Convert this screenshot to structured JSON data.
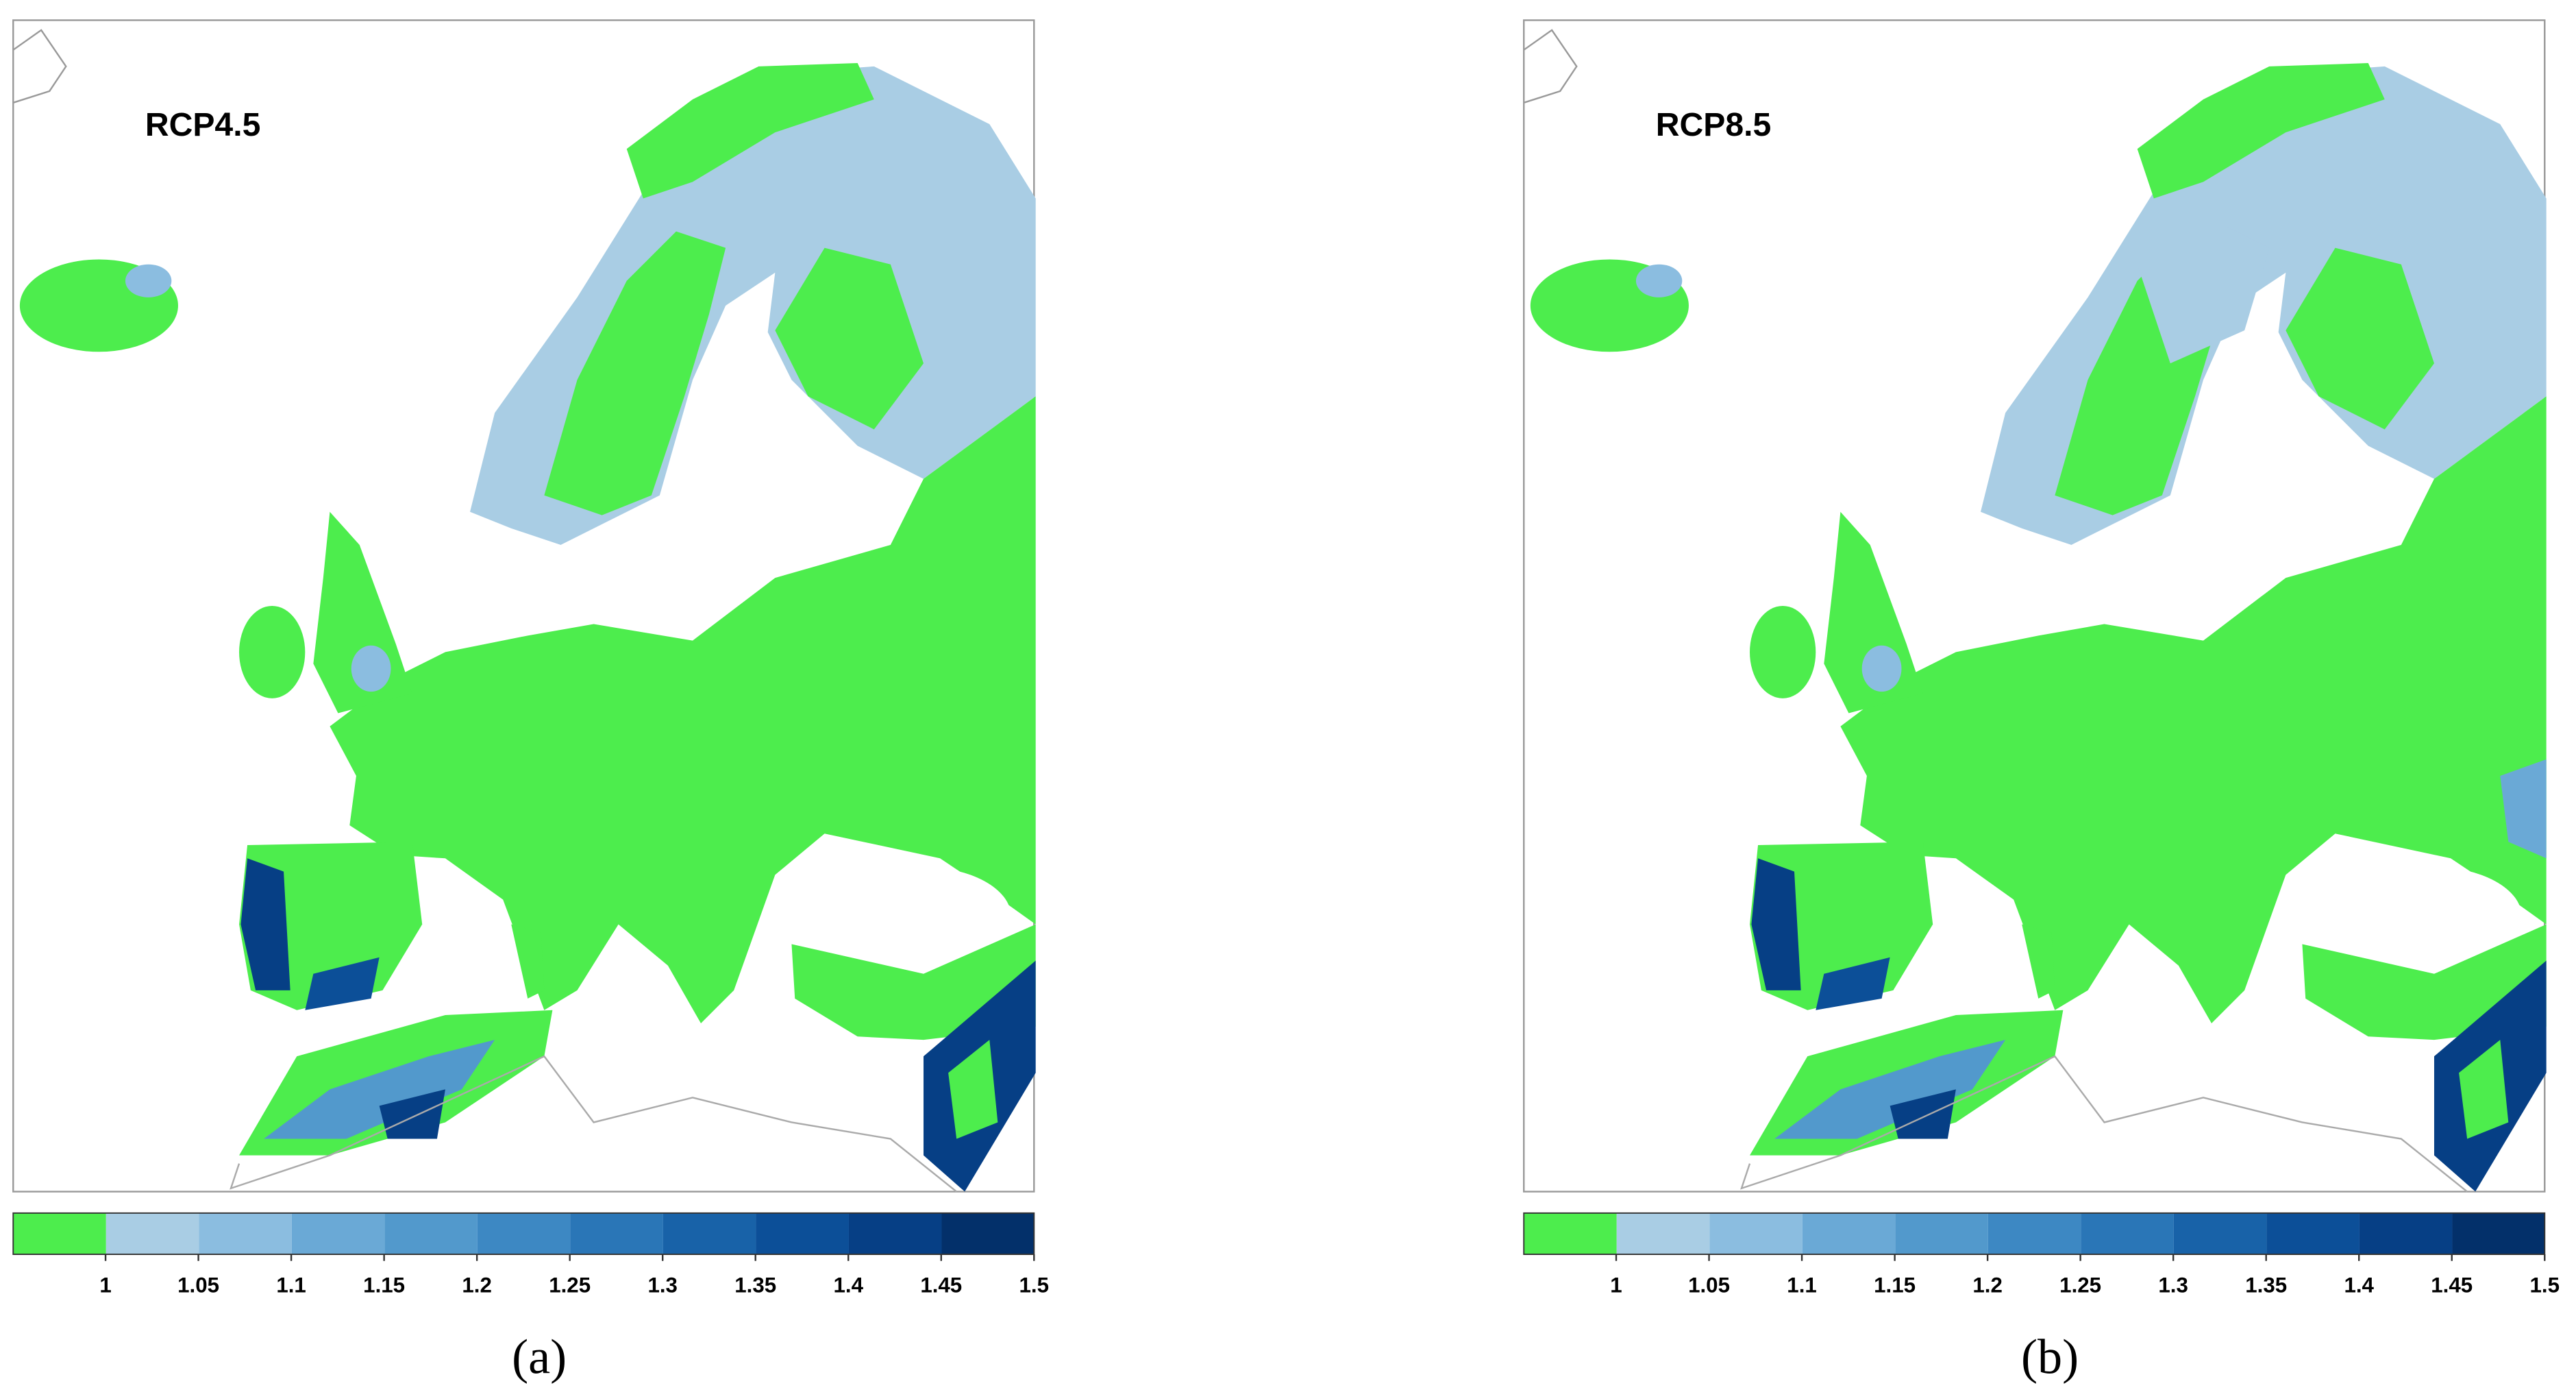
{
  "panels": [
    {
      "label": "RCP4.5",
      "caption": "(a)"
    },
    {
      "label": "RCP8.5",
      "caption": "(b)"
    }
  ],
  "legend": {
    "colors": [
      "#4ded4d",
      "#a9cde4",
      "#8bbde0",
      "#6aa9d6",
      "#5299cc",
      "#3d88c3",
      "#2a76b7",
      "#1862a8",
      "#0c4f98",
      "#063f85",
      "#03306a"
    ],
    "ticks": [
      1,
      1.05,
      1.1,
      1.15,
      1.2,
      1.25,
      1.3,
      1.35,
      1.4,
      1.45,
      1.5
    ]
  }
}
